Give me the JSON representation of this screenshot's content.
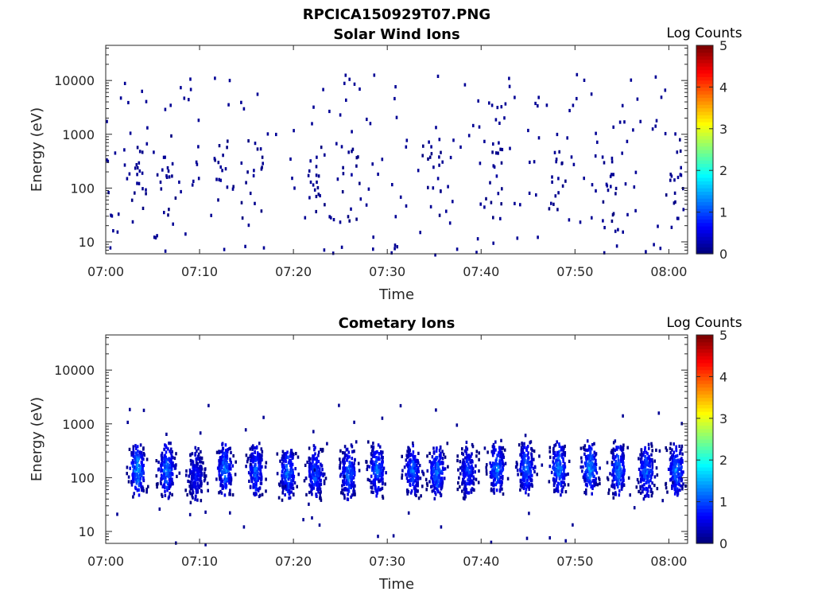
{
  "figure_title": "RPCICA150929T07.PNG",
  "chart_data": [
    {
      "type": "heatmap",
      "title": "Solar Wind Ions",
      "xlabel": "Time",
      "ylabel": "Energy (eV)",
      "x_ticks": [
        "07:00",
        "07:10",
        "07:20",
        "07:30",
        "07:40",
        "07:50",
        "08:00"
      ],
      "x_tick_minutes": [
        0,
        10,
        20,
        30,
        40,
        50,
        60
      ],
      "x_range_minutes": [
        0,
        62
      ],
      "y_scale": "log",
      "y_ticks": [
        "10",
        "100",
        "1000",
        "10000"
      ],
      "y_tick_values": [
        10,
        100,
        1000,
        10000
      ],
      "y_range": [
        6,
        45000
      ],
      "colorbar": {
        "label": "Log Counts",
        "range": [
          0,
          5
        ],
        "ticks": [
          "0",
          "1",
          "2",
          "3",
          "4",
          "5"
        ]
      },
      "colormap": "jet",
      "log_counts_max_approx": 0.3,
      "description_of_data": "sparse isolated counts across 10-10000 eV",
      "bursts": [
        {
          "t": 3.5,
          "e": 180,
          "level": 0.2
        },
        {
          "t": 6.2,
          "e": 200,
          "level": 0.2
        },
        {
          "t": 12.3,
          "e": 180,
          "level": 0.2
        },
        {
          "t": 15.8,
          "e": 160,
          "level": 0.2
        },
        {
          "t": 22.0,
          "e": 140,
          "level": 0.2
        },
        {
          "t": 25.9,
          "e": 170,
          "level": 0.2
        },
        {
          "t": 35.0,
          "e": 150,
          "level": 0.2
        },
        {
          "t": 41.5,
          "e": 180,
          "level": 0.2
        },
        {
          "t": 47.9,
          "e": 170,
          "level": 0.2
        },
        {
          "t": 53.5,
          "e": 160,
          "level": 0.2
        },
        {
          "t": 60.8,
          "e": 170,
          "level": 0.2
        }
      ]
    },
    {
      "type": "heatmap",
      "title": "Cometary Ions",
      "xlabel": "Time",
      "ylabel": "Energy (eV)",
      "x_ticks": [
        "07:00",
        "07:10",
        "07:20",
        "07:30",
        "07:40",
        "07:50",
        "08:00"
      ],
      "x_tick_minutes": [
        0,
        10,
        20,
        30,
        40,
        50,
        60
      ],
      "x_range_minutes": [
        0,
        62
      ],
      "y_scale": "log",
      "y_ticks": [
        "10",
        "100",
        "1000",
        "10000"
      ],
      "y_tick_values": [
        10,
        100,
        1000,
        10000
      ],
      "y_range": [
        6,
        45000
      ],
      "colorbar": {
        "label": "Log Counts",
        "range": [
          0,
          5
        ],
        "ticks": [
          "0",
          "1",
          "2",
          "3",
          "4",
          "5"
        ]
      },
      "colormap": "jet",
      "log_counts_max_approx": 2.0,
      "bursts": [
        {
          "t": 3.3,
          "e": 150,
          "level": 1.8
        },
        {
          "t": 6.4,
          "e": 150,
          "level": 1.6
        },
        {
          "t": 9.5,
          "e": 120,
          "level": 0.9
        },
        {
          "t": 12.6,
          "e": 150,
          "level": 1.6
        },
        {
          "t": 15.9,
          "e": 150,
          "level": 1.4
        },
        {
          "t": 19.3,
          "e": 130,
          "level": 1.6
        },
        {
          "t": 22.2,
          "e": 130,
          "level": 1.4
        },
        {
          "t": 25.8,
          "e": 130,
          "level": 1.5
        },
        {
          "t": 28.8,
          "e": 150,
          "level": 1.5
        },
        {
          "t": 32.6,
          "e": 140,
          "level": 1.4
        },
        {
          "t": 35.2,
          "e": 140,
          "level": 1.6
        },
        {
          "t": 38.5,
          "e": 140,
          "level": 1.2
        },
        {
          "t": 41.6,
          "e": 160,
          "level": 1.6
        },
        {
          "t": 44.7,
          "e": 160,
          "level": 1.6
        },
        {
          "t": 48.2,
          "e": 160,
          "level": 1.7
        },
        {
          "t": 51.5,
          "e": 160,
          "level": 1.7
        },
        {
          "t": 54.5,
          "e": 150,
          "level": 1.6
        },
        {
          "t": 57.5,
          "e": 140,
          "level": 1.5
        },
        {
          "t": 60.7,
          "e": 150,
          "level": 1.6
        }
      ]
    }
  ]
}
